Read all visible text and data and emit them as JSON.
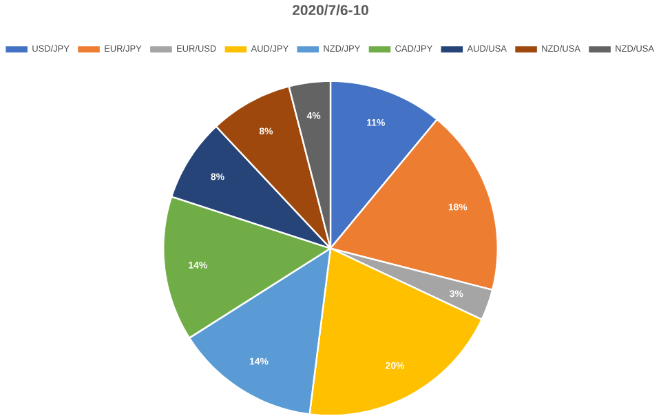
{
  "chart_data": {
    "type": "pie",
    "title": "2020/7/6-10",
    "categories": [
      "USD/JPY",
      "EUR/JPY",
      "EUR/USD",
      "AUD/JPY",
      "NZD/JPY",
      "CAD/JPY",
      "AUD/USA",
      "NZD/USA",
      "NZD/USA"
    ],
    "values": [
      11,
      18,
      3,
      20,
      14,
      14,
      8,
      8,
      4
    ],
    "value_labels": [
      "11%",
      "18%",
      "3%",
      "20%",
      "14%",
      "14%",
      "8%",
      "8%",
      "4%"
    ],
    "colors": [
      "#4472c4",
      "#ed7d31",
      "#a5a5a5",
      "#ffc000",
      "#5b9bd5",
      "#70ad47",
      "#264478",
      "#9e480e",
      "#636363"
    ],
    "legend": "top"
  }
}
